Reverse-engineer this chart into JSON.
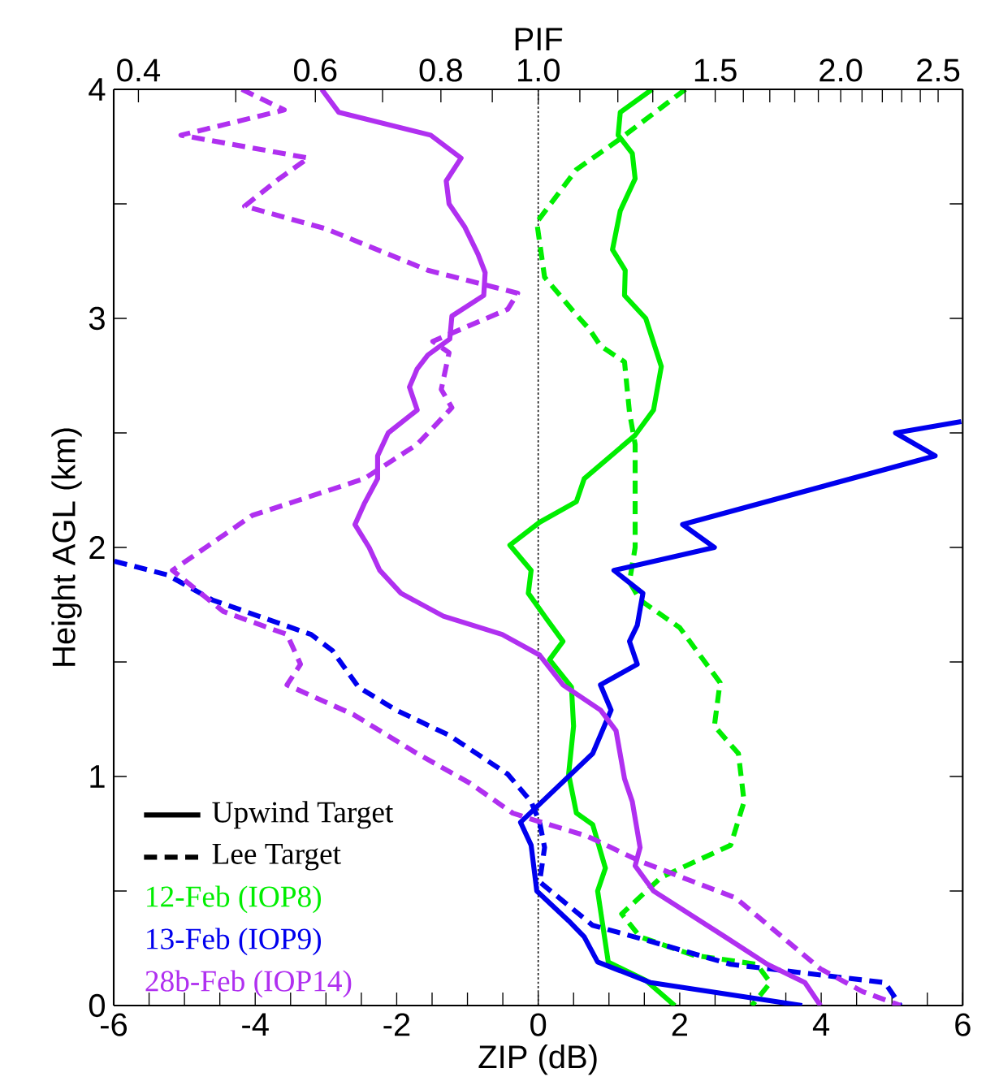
{
  "chart_data": {
    "type": "line",
    "xlabel": "ZIP (dB)",
    "ylabel": "Height AGL (km)",
    "x2label": "PIF",
    "xlim": [
      -6,
      6
    ],
    "ylim": [
      0,
      4
    ],
    "x2lim": [
      0.378,
      2.645
    ],
    "log": "x2",
    "xticks": [
      -6,
      {
        "value": -5.5,
        "label": null
      },
      {
        "value": -5,
        "label": null
      },
      {
        "value": -4.5,
        "label": null
      },
      -4,
      {
        "value": -3.5,
        "label": null
      },
      {
        "value": -3,
        "label": null
      },
      {
        "value": -2.5,
        "label": null
      },
      -2,
      {
        "value": -1.5,
        "label": null
      },
      {
        "value": -1,
        "label": null
      },
      {
        "value": -0.5,
        "label": null
      },
      0,
      {
        "value": 0.5,
        "label": null
      },
      {
        "value": 1,
        "label": null
      },
      {
        "value": 1.5,
        "label": null
      },
      2,
      {
        "value": 2.5,
        "label": null
      },
      {
        "value": 3,
        "label": null
      },
      {
        "value": 3.5,
        "label": null
      },
      4,
      {
        "value": 4.5,
        "label": null
      },
      {
        "value": 5,
        "label": null
      },
      {
        "value": 5.5,
        "label": null
      },
      6
    ],
    "yticks": [
      0,
      {
        "value": 0.5,
        "label": null
      },
      1,
      {
        "value": 1.5,
        "label": null
      },
      2,
      {
        "value": 2.5,
        "label": null
      },
      3,
      {
        "value": 3.5,
        "label": null
      },
      4
    ],
    "x2ticks": [
      0.4,
      {
        "value": 0.5,
        "label": null
      },
      0.6,
      {
        "value": 0.7,
        "label": null
      },
      0.8,
      {
        "value": 0.9,
        "label": null
      },
      {
        "value": 1,
        "label": "1.0"
      },
      {
        "value": 1.1,
        "label": null
      },
      {
        "value": 1.2,
        "label": null
      },
      {
        "value": 1.3,
        "label": null
      },
      {
        "value": 1.4,
        "label": null
      },
      1.5,
      {
        "value": 1.6,
        "label": null
      },
      {
        "value": 1.7,
        "label": null
      },
      {
        "value": 1.8,
        "label": null
      },
      {
        "value": 1.9,
        "label": null
      },
      {
        "value": 2,
        "label": "2.0"
      },
      {
        "value": 2.1,
        "label": null
      },
      {
        "value": 2.2,
        "label": null
      },
      {
        "value": 2.3,
        "label": null
      },
      {
        "value": 2.4,
        "label": null
      },
      2.5
    ],
    "ref_lines": [
      {
        "axis": "x",
        "value": 0,
        "color": "#000000",
        "line_style": "dotted"
      }
    ],
    "legend": "bottom left",
    "annotations": [
      "Upwind Target",
      "Lee Target"
    ],
    "series": [
      {
        "name": "12-Feb (IOP8)",
        "color": "#00ee00",
        "line_style": "solid",
        "x": [
          1.61,
          1.16,
          1.13,
          1.33,
          1.37,
          1.16,
          1.05,
          1.23,
          1.22,
          1.52,
          1.74,
          1.63,
          1.37,
          0.65,
          0.54,
          0.02,
          -0.4,
          -0.1,
          -0.14,
          0.09,
          0.35,
          0.16,
          0.47,
          0.5,
          0.43,
          0.54,
          0.77,
          0.95,
          0.84,
          0.99,
          1.52,
          1.93
        ],
        "values": [
          4.0,
          3.9,
          3.8,
          3.72,
          3.61,
          3.47,
          3.3,
          3.21,
          3.1,
          3.0,
          2.79,
          2.6,
          2.49,
          2.3,
          2.2,
          2.11,
          2.01,
          1.9,
          1.8,
          1.7,
          1.59,
          1.51,
          1.39,
          1.22,
          1.01,
          0.84,
          0.79,
          0.6,
          0.5,
          0.19,
          0.11,
          0.0
        ]
      },
      {
        "color": "#00ee00",
        "line_style": "dashed",
        "x": [
          2.08,
          1.14,
          0.54,
          -0.02,
          0.09,
          0.5,
          0.73,
          0.88,
          1.22,
          1.29,
          1.37,
          1.37,
          1.29,
          1.44,
          2.0,
          2.57,
          2.49,
          2.83,
          2.91,
          2.72,
          1.74,
          1.18,
          1.44,
          2.19,
          3.09,
          3.28,
          3.02
        ],
        "values": [
          4.0,
          3.78,
          3.65,
          3.42,
          3.18,
          3.03,
          2.95,
          2.88,
          2.81,
          2.59,
          2.45,
          2.0,
          1.85,
          1.77,
          1.65,
          1.41,
          1.22,
          1.1,
          0.89,
          0.7,
          0.56,
          0.4,
          0.3,
          0.22,
          0.18,
          0.1,
          0.0
        ]
      },
      {
        "name": "13-Feb (IOP9)",
        "color": "#0000ee",
        "line_style": "solid",
        "x": [
          5.98,
          5.05,
          5.61,
          2.04,
          2.49,
          1.07,
          1.48,
          1.4,
          1.29,
          1.4,
          0.88,
          1.03,
          0.77,
          -0.25,
          -0.1,
          -0.02,
          0.43,
          0.65,
          0.84,
          1.59,
          3.73
        ],
        "values": [
          2.55,
          2.5,
          2.4,
          2.1,
          2.0,
          1.9,
          1.8,
          1.66,
          1.59,
          1.49,
          1.4,
          1.29,
          1.1,
          0.8,
          0.7,
          0.5,
          0.37,
          0.3,
          0.19,
          0.1,
          0.0
        ]
      },
      {
        "color": "#0000ee",
        "line_style": "dashed",
        "x": [
          -5.99,
          -5.24,
          -4.6,
          -3.21,
          -2.91,
          -2.54,
          -2.01,
          -1.26,
          -0.43,
          -0.1,
          0.02,
          0.09,
          0.02,
          0.77,
          1.59,
          2.72,
          4.9,
          5.12
        ],
        "values": [
          1.94,
          1.88,
          1.77,
          1.62,
          1.55,
          1.39,
          1.29,
          1.18,
          1.01,
          0.89,
          0.8,
          0.69,
          0.54,
          0.35,
          0.28,
          0.18,
          0.1,
          0.0
        ]
      },
      {
        "name": "28b-Feb (IOP14)",
        "color": "#b030f0",
        "line_style": "solid",
        "x": [
          -3.06,
          -2.82,
          -1.52,
          -1.09,
          -1.3,
          -1.26,
          -1.04,
          -0.85,
          -0.75,
          -0.77,
          -1.22,
          -1.25,
          -1.56,
          -1.71,
          -1.82,
          -1.71,
          -2.12,
          -2.27,
          -2.27,
          -2.46,
          -2.59,
          -2.39,
          -2.24,
          -1.94,
          -1.34,
          -0.51,
          0.02,
          0.35,
          0.88,
          1.1,
          1.22,
          1.33,
          1.44,
          1.37,
          1.63,
          2.64,
          3.24,
          3.77,
          3.99
        ],
        "values": [
          4.0,
          3.9,
          3.8,
          3.7,
          3.6,
          3.5,
          3.4,
          3.28,
          3.2,
          3.1,
          3.01,
          2.91,
          2.84,
          2.78,
          2.7,
          2.6,
          2.5,
          2.4,
          2.3,
          2.19,
          2.1,
          2.0,
          1.9,
          1.8,
          1.7,
          1.62,
          1.53,
          1.4,
          1.29,
          1.2,
          0.99,
          0.89,
          0.69,
          0.61,
          0.5,
          0.3,
          0.18,
          0.1,
          0.0
        ]
      },
      {
        "color": "#b030f0",
        "line_style": "dashed",
        "x": [
          -4.19,
          -3.59,
          -5.05,
          -3.25,
          -3.66,
          -4.15,
          -2.99,
          -1.56,
          -0.29,
          -0.43,
          -1.49,
          -1.26,
          -1.37,
          -1.22,
          -1.71,
          -2.46,
          -4.04,
          -5.17,
          -4.45,
          -3.55,
          -3.36,
          -3.55,
          -2.61,
          -1.71,
          -0.96,
          -0.36,
          -0.06,
          0.69,
          1.44,
          2.79,
          3.99,
          4.59,
          5.12
        ],
        "values": [
          4.0,
          3.91,
          3.8,
          3.7,
          3.61,
          3.49,
          3.39,
          3.21,
          3.11,
          3.04,
          2.9,
          2.85,
          2.69,
          2.61,
          2.45,
          2.3,
          2.14,
          1.9,
          1.72,
          1.62,
          1.49,
          1.4,
          1.27,
          1.1,
          0.97,
          0.84,
          0.81,
          0.74,
          0.63,
          0.47,
          0.16,
          0.06,
          0.0
        ]
      }
    ]
  }
}
